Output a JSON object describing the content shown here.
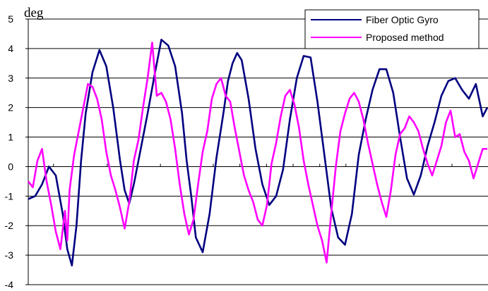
{
  "chart_data": {
    "type": "line",
    "unit_label": "deg",
    "ylim": [
      -4,
      5
    ],
    "y_ticks": [
      -4,
      -3,
      -2,
      -1,
      0,
      1,
      2,
      3,
      4,
      5
    ],
    "y_tick_labels": [
      "-4",
      "-3",
      "-2",
      "-1",
      "0",
      "1",
      "2",
      "3",
      "4",
      "5"
    ],
    "x_range": [
      0,
      100
    ],
    "x_minor_ticks": [
      5.5,
      11.5,
      17.2,
      23.0,
      28.8,
      34.6,
      40.3,
      46.1,
      51.9,
      57.7,
      63.5,
      69.2,
      75.0,
      80.8,
      86.6,
      92.3
    ],
    "grid": "horizontal",
    "legend_position": "top-right",
    "series": [
      {
        "name": "Fiber Optic Gyro",
        "color": "#000080",
        "x": [
          0,
          1.5,
          3,
          4.5,
          6,
          7.5,
          8.5,
          9.5,
          10.5,
          11.5,
          12.5,
          14,
          15.5,
          17,
          18.5,
          20,
          21,
          22,
          23,
          24.5,
          26,
          27.5,
          29,
          30.5,
          32,
          33.5,
          34.5,
          35.5,
          36.5,
          38,
          39.5,
          41,
          42.5,
          43.5,
          44.5,
          45.5,
          46.5,
          48,
          49.5,
          51,
          52.5,
          54,
          55.5,
          57,
          58.5,
          60,
          61.5,
          63,
          64.5,
          66,
          67.5,
          69,
          70.5,
          72,
          73.5,
          75,
          76.5,
          78,
          79.5,
          81,
          82.5,
          84,
          85.5,
          87,
          88.5,
          90,
          91.5,
          93,
          94.5,
          96,
          97.5,
          99,
          100
        ],
        "values": [
          -1.1,
          -1.0,
          -0.6,
          0.0,
          -0.3,
          -1.6,
          -2.8,
          -3.35,
          -2.0,
          0.2,
          1.8,
          3.2,
          3.95,
          3.4,
          2.0,
          0.2,
          -0.8,
          -1.25,
          -0.6,
          0.6,
          1.8,
          3.1,
          4.3,
          4.1,
          3.4,
          1.8,
          0.2,
          -1.0,
          -2.4,
          -2.9,
          -1.6,
          0.3,
          1.8,
          2.9,
          3.5,
          3.85,
          3.6,
          2.3,
          0.6,
          -0.6,
          -1.3,
          -1.0,
          -0.1,
          1.6,
          3.0,
          3.75,
          3.7,
          2.2,
          0.4,
          -1.4,
          -2.4,
          -2.65,
          -1.6,
          0.4,
          1.6,
          2.6,
          3.3,
          3.3,
          2.5,
          1.0,
          -0.4,
          -0.95,
          -0.3,
          0.7,
          1.5,
          2.4,
          2.9,
          3.0,
          2.6,
          2.3,
          2.8,
          1.7,
          2.0
        ]
      },
      {
        "name": "Proposed method",
        "color": "#FF00FF",
        "x": [
          0,
          1,
          2,
          3,
          4,
          5,
          6,
          7,
          8,
          8.5,
          9,
          10,
          11,
          12,
          13,
          14,
          15,
          16,
          17,
          18,
          19,
          20,
          21,
          22,
          23,
          24,
          25,
          26,
          27,
          28,
          29,
          30,
          31,
          32,
          33,
          34,
          35,
          36,
          37,
          38,
          39,
          40,
          41,
          42,
          43,
          44,
          45,
          46,
          47,
          48,
          49,
          50,
          51,
          52,
          53,
          54,
          55,
          56,
          57,
          58,
          59,
          60,
          61,
          62,
          63,
          64,
          65,
          66,
          67,
          68,
          69,
          70,
          71,
          72,
          73,
          74,
          75,
          76,
          77,
          78,
          79,
          80,
          81,
          82,
          83,
          84,
          85,
          86,
          87,
          88,
          89,
          90,
          91,
          92,
          93,
          94,
          95,
          96,
          97,
          98,
          99,
          100
        ],
        "values": [
          -0.5,
          -0.7,
          0.2,
          0.6,
          -0.5,
          -1.3,
          -2.2,
          -2.8,
          -1.5,
          -2.5,
          -0.8,
          0.4,
          1.2,
          2.0,
          2.8,
          2.7,
          2.3,
          1.6,
          0.5,
          -0.3,
          -0.8,
          -1.4,
          -2.1,
          -1.2,
          0.2,
          0.9,
          2.0,
          3.0,
          4.2,
          2.4,
          2.5,
          2.2,
          1.6,
          0.6,
          -0.6,
          -1.6,
          -2.3,
          -1.8,
          -0.6,
          0.5,
          1.2,
          2.3,
          2.8,
          3.0,
          2.4,
          2.2,
          1.3,
          0.5,
          -0.3,
          -0.8,
          -1.2,
          -1.8,
          -2.0,
          -1.3,
          0.1,
          0.8,
          1.7,
          2.4,
          2.6,
          2.1,
          1.3,
          0.2,
          -0.6,
          -1.3,
          -2.0,
          -2.5,
          -3.25,
          -1.6,
          0.0,
          1.2,
          1.8,
          2.3,
          2.5,
          2.2,
          1.6,
          0.8,
          0.1,
          -0.6,
          -1.2,
          -1.7,
          -0.8,
          0.4,
          1.1,
          1.3,
          1.7,
          1.5,
          1.2,
          0.6,
          0.1,
          -0.3,
          0.2,
          0.7,
          1.5,
          1.9,
          1.0,
          1.1,
          0.5,
          0.2,
          -0.4,
          0.1,
          0.6,
          0.6
        ]
      }
    ]
  }
}
